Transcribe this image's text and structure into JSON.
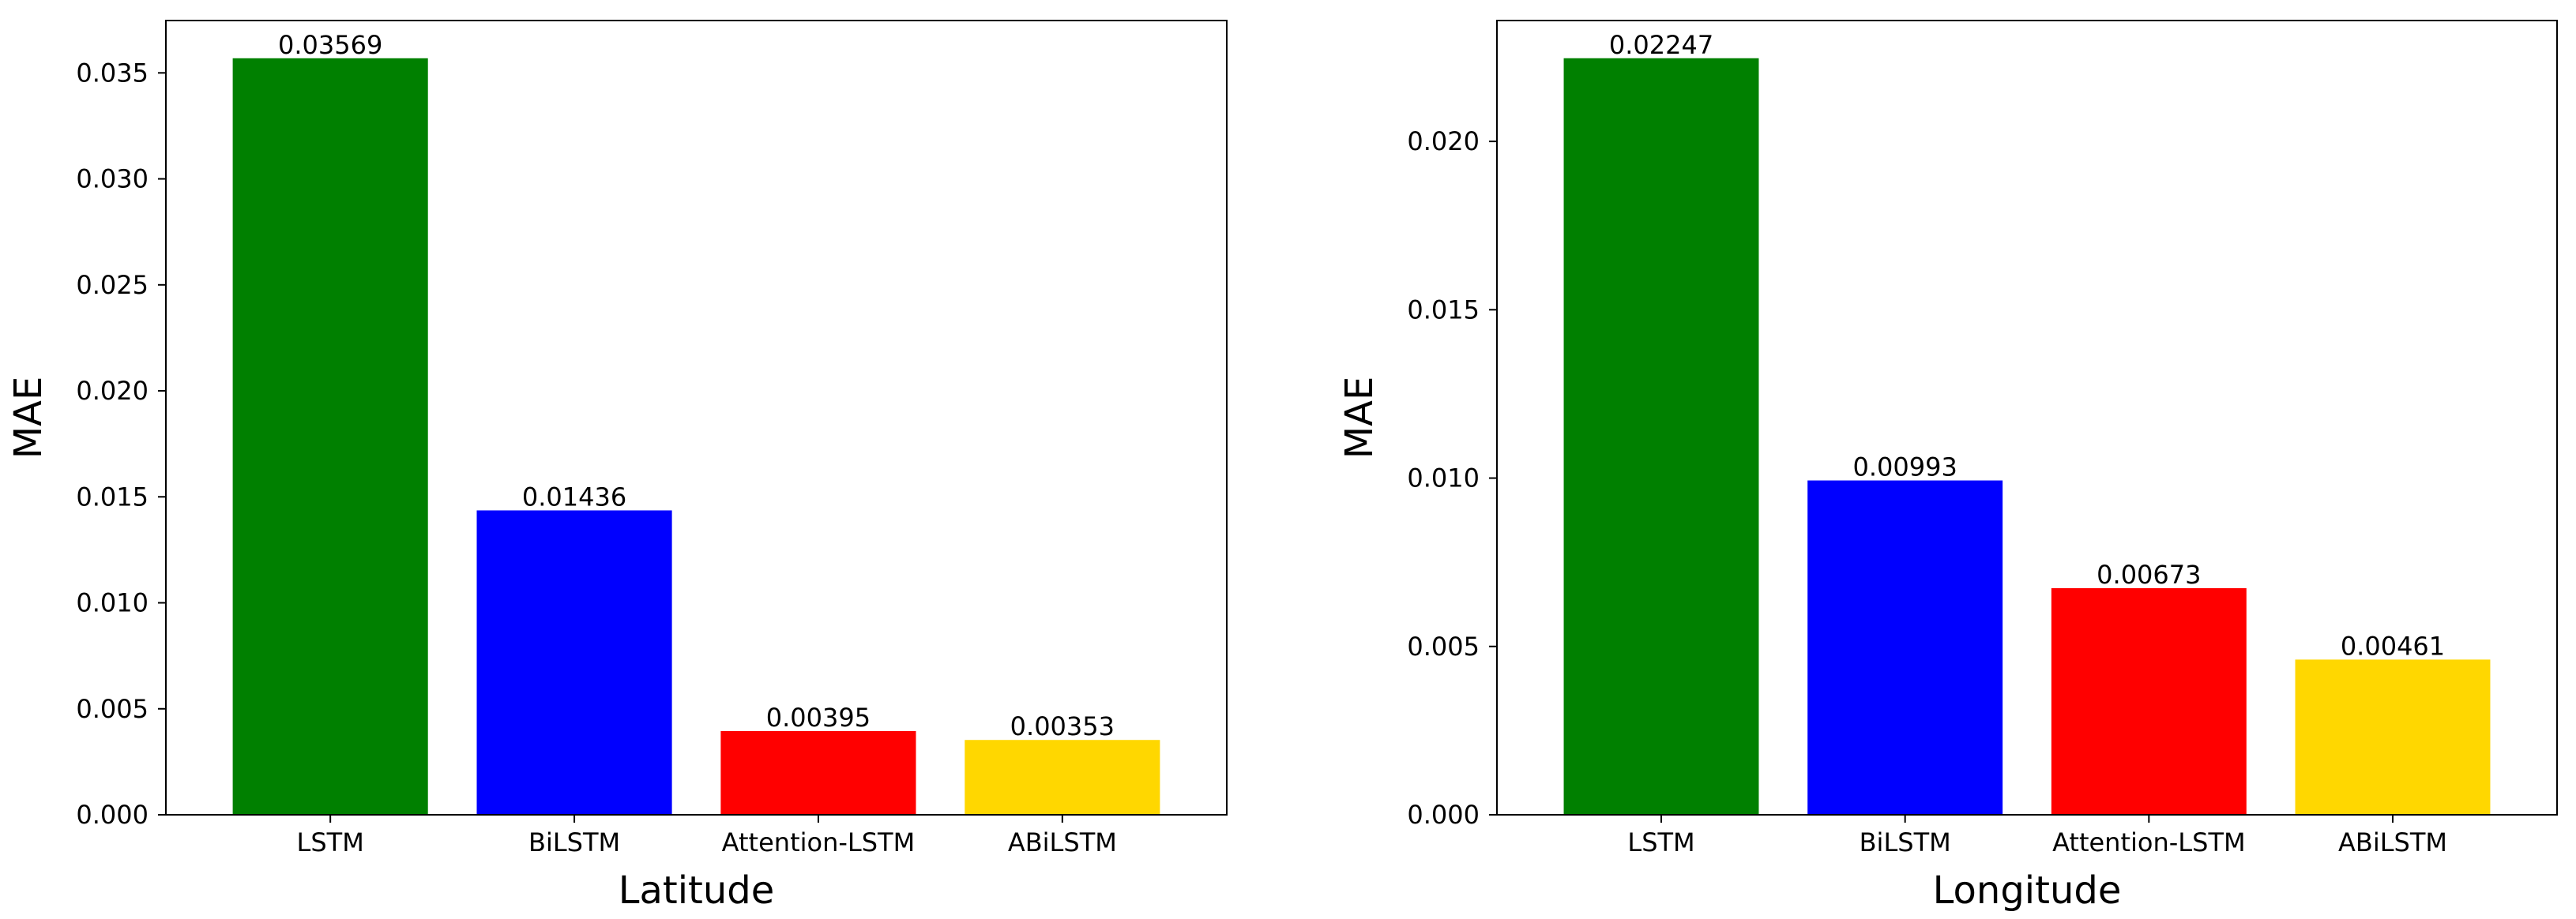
{
  "chart_data": [
    {
      "type": "bar",
      "categories": [
        "LSTM",
        "BiLSTM",
        "Attention-LSTM",
        "ABiLSTM"
      ],
      "values": [
        0.03569,
        0.01436,
        0.00395,
        0.00353
      ],
      "value_labels": [
        "0.03569",
        "0.01436",
        "0.00395",
        "0.00353"
      ],
      "colors": [
        "#008000",
        "#0000ff",
        "#ff0000",
        "#ffd700"
      ],
      "xlabel": "Latitude",
      "ylabel": "MAE",
      "ylim": [
        0,
        0.03747
      ],
      "yticks": [
        0.0,
        0.005,
        0.01,
        0.015,
        0.02,
        0.025,
        0.03,
        0.035
      ],
      "ytick_labels": [
        "0.000",
        "0.005",
        "0.010",
        "0.015",
        "0.020",
        "0.025",
        "0.030",
        "0.035"
      ],
      "grid": false
    },
    {
      "type": "bar",
      "categories": [
        "LSTM",
        "BiLSTM",
        "Attention-LSTM",
        "ABiLSTM"
      ],
      "values": [
        0.02247,
        0.00993,
        0.00673,
        0.00461
      ],
      "value_labels": [
        "0.02247",
        "0.00993",
        "0.00673",
        "0.00461"
      ],
      "colors": [
        "#008000",
        "#0000ff",
        "#ff0000",
        "#ffd700"
      ],
      "xlabel": "Longitude",
      "ylabel": "MAE",
      "ylim": [
        0,
        0.02359
      ],
      "yticks": [
        0.0,
        0.005,
        0.01,
        0.015,
        0.02
      ],
      "ytick_labels": [
        "0.000",
        "0.005",
        "0.010",
        "0.015",
        "0.020"
      ],
      "grid": false
    }
  ]
}
